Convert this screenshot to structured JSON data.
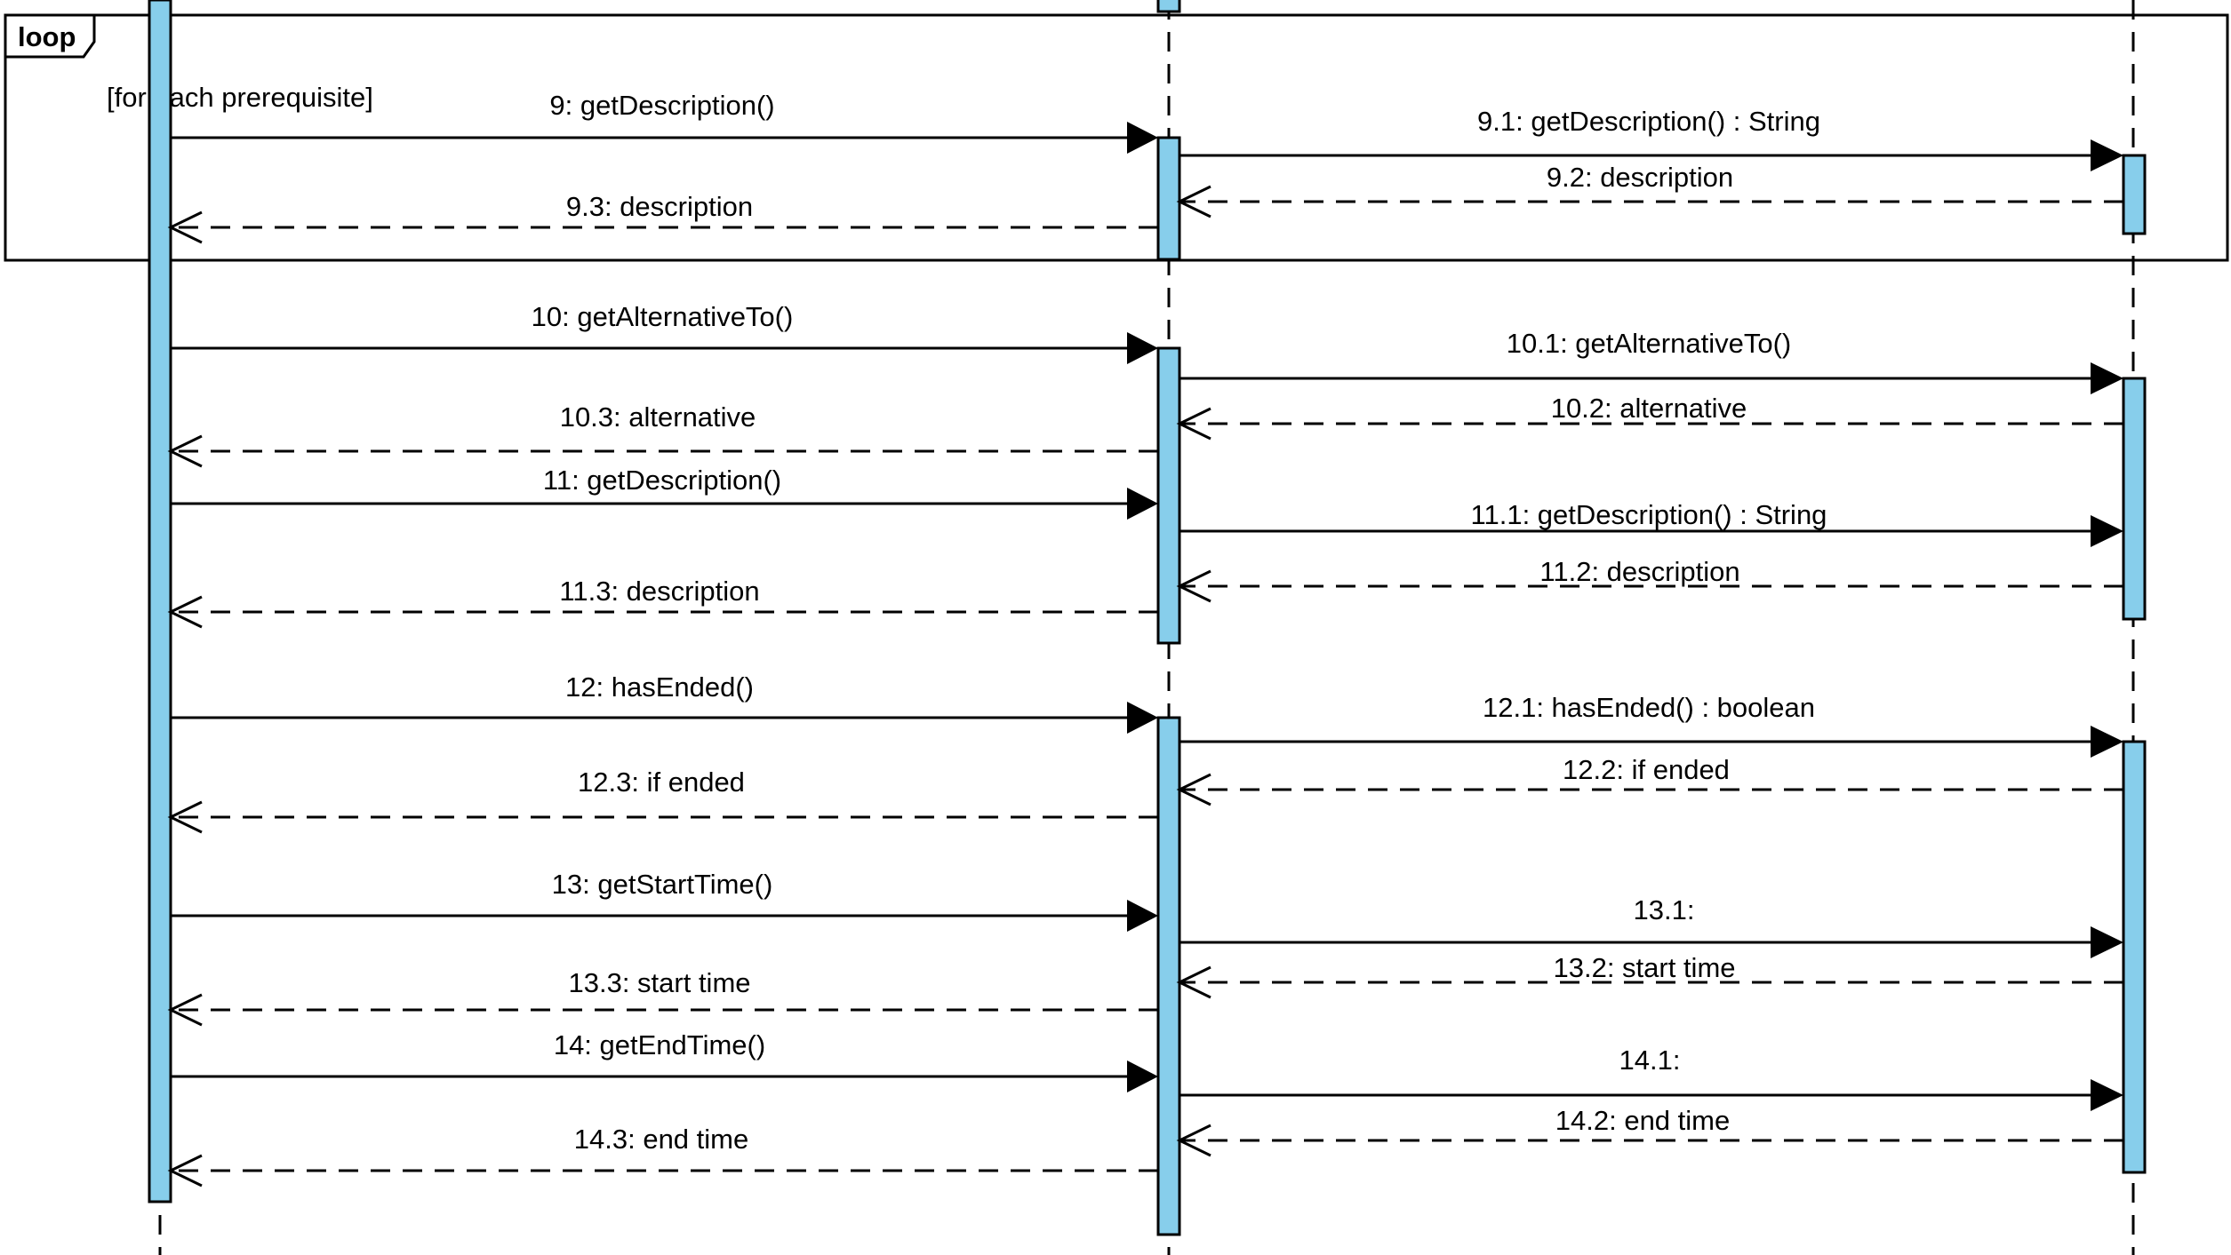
{
  "diagram": {
    "type": "sequence",
    "colors": {
      "activation": "#87CEEB",
      "line": "#000000",
      "text": "#000000"
    },
    "loop": {
      "operator": "loop",
      "guard": "[for each prerequisite]"
    },
    "messages": [
      {
        "label": "9: getDescription()",
        "kind": "call"
      },
      {
        "label": "9.1: getDescription() : String",
        "kind": "call"
      },
      {
        "label": "9.2: description",
        "kind": "return"
      },
      {
        "label": "9.3: description",
        "kind": "return"
      },
      {
        "label": "10: getAlternativeTo()",
        "kind": "call"
      },
      {
        "label": "10.1: getAlternativeTo()",
        "kind": "call"
      },
      {
        "label": "10.2: alternative",
        "kind": "return"
      },
      {
        "label": "10.3: alternative",
        "kind": "return"
      },
      {
        "label": "11: getDescription()",
        "kind": "call"
      },
      {
        "label": "11.1: getDescription() : String",
        "kind": "call"
      },
      {
        "label": "11.2: description",
        "kind": "return"
      },
      {
        "label": "11.3: description",
        "kind": "return"
      },
      {
        "label": "12: hasEnded()",
        "kind": "call"
      },
      {
        "label": "12.1: hasEnded() : boolean",
        "kind": "call"
      },
      {
        "label": "12.2: if ended",
        "kind": "return"
      },
      {
        "label": "12.3: if ended",
        "kind": "return"
      },
      {
        "label": "13: getStartTime()",
        "kind": "call"
      },
      {
        "label": "13.1:",
        "kind": "call"
      },
      {
        "label": "13.2: start time",
        "kind": "return"
      },
      {
        "label": "13.3: start time",
        "kind": "return"
      },
      {
        "label": "14: getEndTime()",
        "kind": "call"
      },
      {
        "label": "14.1:",
        "kind": "call"
      },
      {
        "label": "14.2: end time",
        "kind": "return"
      },
      {
        "label": "14.3: end time",
        "kind": "return"
      }
    ]
  }
}
